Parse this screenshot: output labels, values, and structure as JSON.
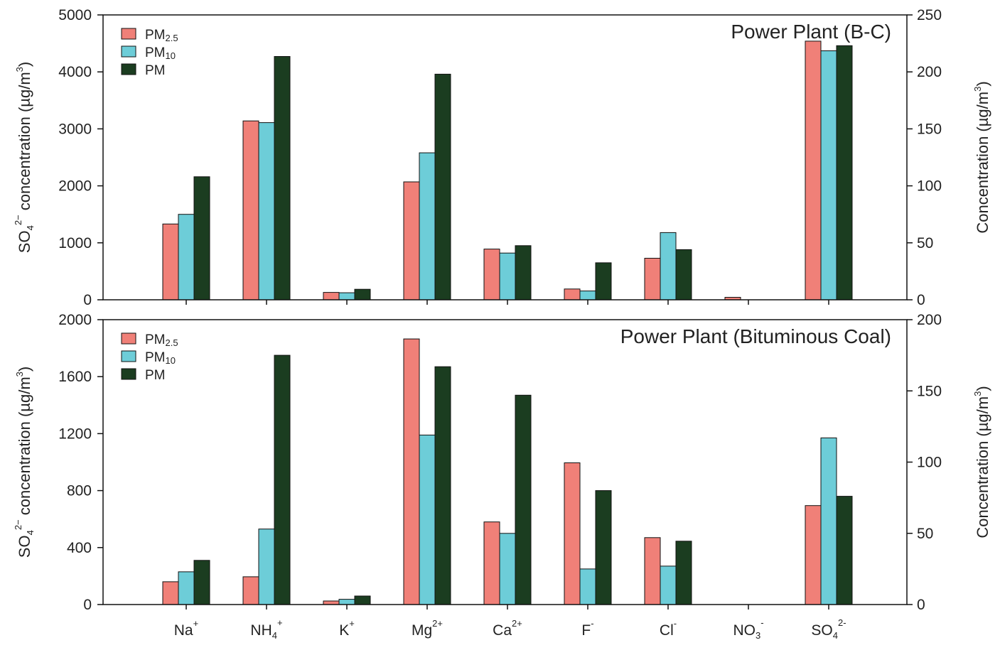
{
  "chart_data": [
    {
      "type": "bar",
      "title": "Power Plant (B-C)",
      "categories": [
        "Na+",
        "NH4+",
        "K+",
        "Mg2+",
        "Ca2+",
        "F-",
        "Cl-",
        "NO3-",
        "SO4 2-"
      ],
      "category_labels": [
        {
          "base": "Na",
          "sup": "+"
        },
        {
          "base": "NH",
          "sub": "4",
          "sup": "+"
        },
        {
          "base": "K",
          "sup": "+"
        },
        {
          "base": "Mg",
          "sup": "2+"
        },
        {
          "base": "Ca",
          "sup": "2+"
        },
        {
          "base": "F",
          "sup": "-"
        },
        {
          "base": "Cl",
          "sup": "-"
        },
        {
          "base": "NO",
          "sub": "3",
          "sup": "-"
        },
        {
          "base": "SO",
          "sub": "4",
          "sup": "2-"
        }
      ],
      "series": [
        {
          "name": "PM2.5",
          "name_base": "PM",
          "name_sub": "2.5",
          "values": [
            66.5,
            157,
            6.5,
            103.5,
            44.5,
            9.5,
            36.5,
            2.2,
            227
          ]
        },
        {
          "name": "PM10",
          "name_base": "PM",
          "name_sub": "10",
          "values": [
            75,
            155.5,
            6.2,
            129,
            41,
            7.7,
            59,
            0,
            218.5
          ]
        },
        {
          "name": "PM",
          "name_base": "PM",
          "name_sub": "",
          "values": [
            108,
            213.5,
            9.2,
            198,
            47.5,
            32.5,
            44,
            0,
            223
          ]
        }
      ],
      "y_units": "right",
      "ylim_left": [
        0,
        5000
      ],
      "yticks_left": [
        "0",
        "1000",
        "2000",
        "3000",
        "4000",
        "5000"
      ],
      "ylim_right": [
        0,
        250
      ],
      "yticks_right": [
        "0",
        "50",
        "100",
        "150",
        "200",
        "250"
      ],
      "ylabel_left": {
        "a": "SO",
        "sub": "4",
        "sup": "2−",
        "b": " concentration (µg/m",
        "sup2": "3",
        "c": ")"
      },
      "ylabel_right": {
        "a": "Concentration (µg/m",
        "sup": "3",
        "c": ")"
      },
      "legend": "top-left",
      "colors": [
        "#f08078",
        "#6dcdd8",
        "#1b3d20"
      ],
      "grid": false
    },
    {
      "type": "bar",
      "title": "Power Plant (Bituminous Coal)",
      "categories": [
        "Na+",
        "NH4+",
        "K+",
        "Mg2+",
        "Ca2+",
        "F-",
        "Cl-",
        "NO3-",
        "SO4 2-"
      ],
      "category_labels": [
        {
          "base": "Na",
          "sup": "+"
        },
        {
          "base": "NH",
          "sub": "4",
          "sup": "+"
        },
        {
          "base": "K",
          "sup": "+"
        },
        {
          "base": "Mg",
          "sup": "2+"
        },
        {
          "base": "Ca",
          "sup": "2+"
        },
        {
          "base": "F",
          "sup": "-"
        },
        {
          "base": "Cl",
          "sup": "-"
        },
        {
          "base": "NO",
          "sub": "3",
          "sup": "-"
        },
        {
          "base": "SO",
          "sub": "4",
          "sup": "2-"
        }
      ],
      "series": [
        {
          "name": "PM2.5",
          "name_base": "PM",
          "name_sub": "2.5",
          "values": [
            16,
            19.5,
            2.5,
            186.5,
            58,
            99.5,
            47,
            0,
            69.5
          ]
        },
        {
          "name": "PM10",
          "name_base": "PM",
          "name_sub": "10",
          "values": [
            23,
            53,
            3.7,
            119,
            50,
            25,
            27,
            0,
            117
          ]
        },
        {
          "name": "PM",
          "name_base": "PM",
          "name_sub": "",
          "values": [
            31,
            175,
            6,
            167,
            147,
            80,
            44.5,
            0,
            76
          ]
        }
      ],
      "y_units": "right",
      "ylim_left": [
        0,
        2000
      ],
      "yticks_left": [
        "0",
        "400",
        "800",
        "1200",
        "1600",
        "2000"
      ],
      "ylim_right": [
        0,
        200
      ],
      "yticks_right": [
        "0",
        "50",
        "100",
        "150",
        "200"
      ],
      "ylabel_left": {
        "a": "SO",
        "sub": "4",
        "sup": "2−",
        "b": " concentration (µg/m",
        "sup2": "3",
        "c": ")"
      },
      "ylabel_right": {
        "a": "Concentration (µg/m",
        "sup": "3",
        "c": ")"
      },
      "legend": "top-left",
      "colors": [
        "#f08078",
        "#6dcdd8",
        "#1b3d20"
      ],
      "grid": false
    }
  ]
}
